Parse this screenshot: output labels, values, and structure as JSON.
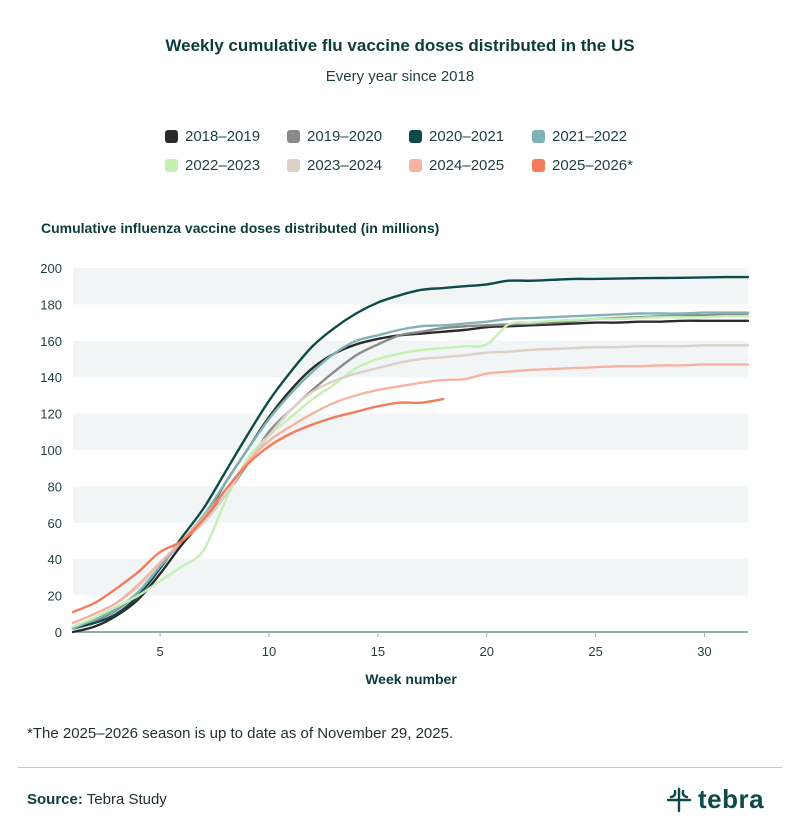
{
  "chart_data": {
    "type": "line",
    "title": "Weekly cumulative flu vaccine doses distributed in the US",
    "subtitle": "Every year since 2018",
    "ylabel": "Cumulative influenza vaccine doses distributed (in millions)",
    "xlabel": "Week number",
    "xlim": [
      1,
      32
    ],
    "ylim": [
      0,
      200
    ],
    "xticks": [
      5,
      10,
      15,
      20,
      25,
      30
    ],
    "yticks": [
      0,
      20,
      40,
      60,
      80,
      100,
      120,
      140,
      160,
      180,
      200
    ],
    "grid": "alternating horizontal bands",
    "legend_position": "top",
    "series": [
      {
        "name": "2018–2019",
        "color": "#2b2b2b",
        "values": [
          0,
          3,
          9,
          18,
          32,
          48,
          62,
          82,
          100,
          118,
          133,
          145,
          153,
          158,
          161,
          163,
          164,
          165,
          166,
          167.5,
          168,
          168.5,
          169,
          169.5,
          170,
          170,
          170.5,
          170.5,
          171,
          171,
          171,
          171
        ]
      },
      {
        "name": "2019–2020",
        "color": "#8a8a8a",
        "values": [
          2,
          6,
          12,
          22,
          36,
          50,
          62,
          75,
          92,
          110,
          122,
          133,
          143,
          152,
          158,
          163,
          165,
          167,
          168,
          168.5,
          169,
          169.5,
          170,
          171,
          172,
          172.5,
          173,
          173.5,
          174,
          174,
          174.5,
          175
        ]
      },
      {
        "name": "2020–2021",
        "color": "#0d4a4a",
        "values": [
          2,
          5,
          10,
          20,
          35,
          52,
          68,
          88,
          108,
          127,
          143,
          157,
          167,
          175,
          181,
          185,
          188,
          189,
          190,
          191,
          193,
          193,
          193.5,
          194,
          194,
          194.2,
          194.4,
          194.5,
          194.6,
          194.8,
          195,
          195
        ]
      },
      {
        "name": "2021–2022",
        "color": "#7fb3b8",
        "values": [
          2,
          7,
          13,
          22,
          36,
          50,
          64,
          82,
          100,
          117,
          131,
          143,
          153,
          160,
          163,
          166,
          168,
          168.5,
          169.5,
          170.5,
          172,
          172.5,
          173,
          173.5,
          174,
          174.5,
          175,
          175,
          175,
          175.5,
          175.5,
          175.5
        ]
      },
      {
        "name": "2022–2023",
        "color": "#c5f0b4",
        "values": [
          3,
          8,
          14,
          20,
          28,
          36,
          45,
          72,
          95,
          108,
          118,
          128,
          136,
          145,
          150,
          153,
          155,
          156,
          157,
          158,
          169,
          170,
          171,
          171.5,
          172,
          172,
          172.5,
          173,
          173,
          173,
          173.5,
          173.5
        ]
      },
      {
        "name": "2023–2024",
        "color": "#dcd1c6",
        "values": [
          5,
          10,
          16,
          25,
          38,
          50,
          60,
          75,
          93,
          108,
          122,
          132,
          138,
          142,
          145,
          148,
          150,
          151,
          152,
          153.5,
          154,
          155,
          155.5,
          156,
          156.5,
          156.5,
          157,
          157,
          157,
          157.5,
          157.5,
          157.5
        ]
      },
      {
        "name": "2024–2025",
        "color": "#f6b3a2",
        "values": [
          5,
          10,
          16,
          26,
          38,
          50,
          63,
          78,
          93,
          105,
          113,
          120,
          126,
          130,
          133,
          135,
          137,
          138.5,
          139,
          142,
          143,
          144,
          144.5,
          145,
          145.5,
          146,
          146,
          146.5,
          146.5,
          147,
          147,
          147
        ]
      },
      {
        "name": "2025–2026*",
        "color": "#f47b5a",
        "values": [
          11,
          16,
          24,
          33,
          44,
          50,
          62,
          78,
          92,
          102,
          109,
          114,
          118,
          121,
          124,
          126,
          126,
          128
        ]
      }
    ]
  },
  "footnote": "*The 2025–2026 season is up to date as of November 29, 2025.",
  "source_label": "Source:",
  "source_text": "Tebra Study",
  "logo_text": "tebra"
}
